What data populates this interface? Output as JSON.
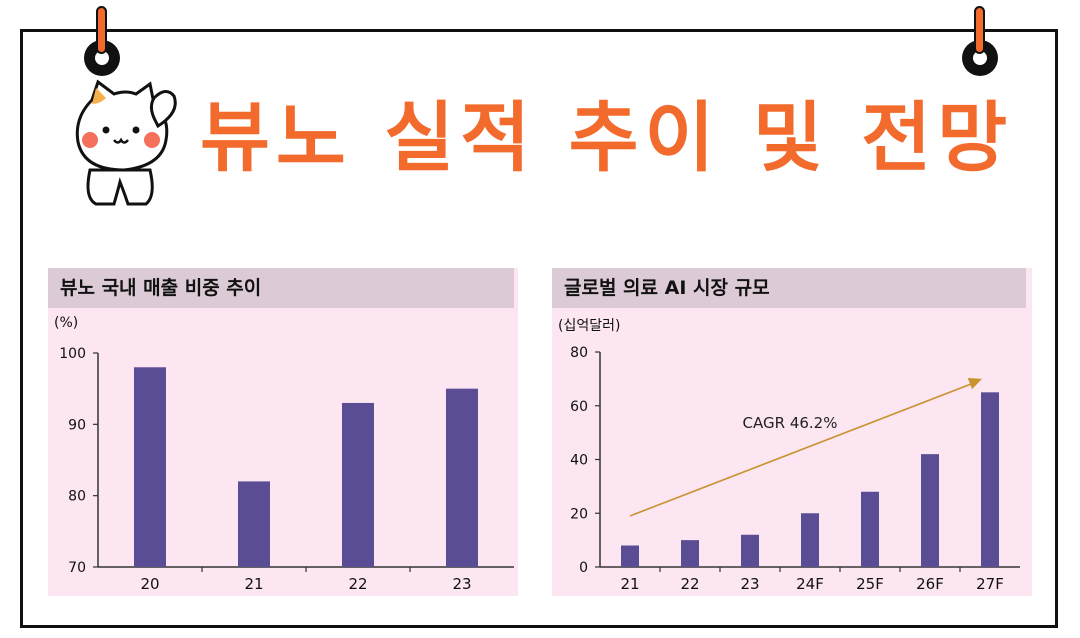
{
  "page": {
    "title": "뷰노 실적 추이 및 전망"
  },
  "colors": {
    "accent": "#f26b2c",
    "bar": "#5b4d94",
    "panel_bg": "#fce6f2",
    "header_bg": "#dccbd6",
    "arrow": "#c9922e"
  },
  "chart_data": [
    {
      "type": "bar",
      "title": "뷰노 국내 매출 비중 추이",
      "unit_label": "(%)",
      "categories": [
        "20",
        "21",
        "22",
        "23"
      ],
      "values": [
        98,
        82,
        93,
        95
      ],
      "ylim": [
        70,
        100
      ],
      "yticks": [
        "70",
        "80",
        "90",
        "100"
      ],
      "grid": false
    },
    {
      "type": "bar",
      "title": "글로벌 의료 AI 시장 규모",
      "unit_label": "(십억달러)",
      "categories": [
        "21",
        "22",
        "23",
        "24F",
        "25F",
        "26F",
        "27F"
      ],
      "values": [
        8,
        10,
        12,
        20,
        28,
        42,
        65
      ],
      "ylim": [
        0,
        80
      ],
      "yticks": [
        "0",
        "20",
        "40",
        "60",
        "80"
      ],
      "annotation": "CAGR 46.2%",
      "trend_arrow": {
        "from_value": 19,
        "to_value": 70
      },
      "grid": false
    }
  ]
}
